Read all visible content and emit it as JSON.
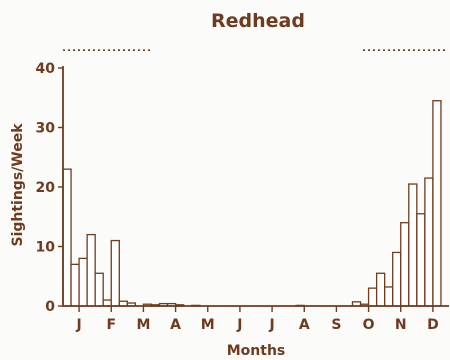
{
  "chart_data": {
    "type": "bar",
    "title": "Redhead",
    "xlabel": "Months",
    "ylabel": "Sightings/Week",
    "ylim": [
      0,
      40
    ],
    "yticks": [
      0,
      10,
      20,
      30,
      40
    ],
    "month_labels": [
      "J",
      "F",
      "M",
      "A",
      "M",
      "J",
      "J",
      "A",
      "S",
      "O",
      "N",
      "D"
    ],
    "bins_per_month": 4,
    "grid": false,
    "legend": "none",
    "values": [
      23,
      7,
      8,
      12,
      5.5,
      1,
      11,
      0.8,
      0.5,
      0,
      0.3,
      0.2,
      0.4,
      0.4,
      0.2,
      0,
      0.1,
      0,
      0,
      0,
      0,
      0,
      0,
      0,
      0,
      0,
      0,
      0,
      0,
      0.1,
      0,
      0,
      0,
      0,
      0,
      0,
      0.7,
      0.3,
      3,
      5.5,
      3.2,
      9,
      14,
      20.5,
      15.5,
      21.5,
      34.5,
      0
    ],
    "reference_level": 43
  },
  "colors": {
    "ink": "#6e3b1e",
    "bar_fill": "#ffffff",
    "background": "#fbfbf9"
  }
}
